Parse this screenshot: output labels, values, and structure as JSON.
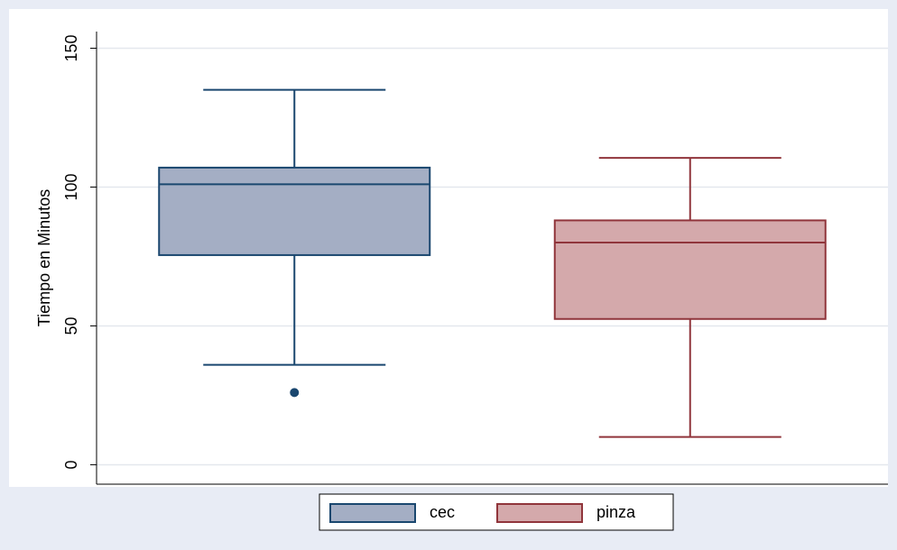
{
  "chart_data": {
    "type": "box",
    "y_label": "Tiempo en Minutos",
    "ylim": [
      -7,
      156
    ],
    "yticks": [
      0,
      50,
      100,
      150
    ],
    "grid": true,
    "legend": "bottom",
    "series": [
      {
        "name": "cec",
        "color": "#a4aec4",
        "edge": "#1a476f",
        "whisker_low": 36,
        "q1": 75.5,
        "median": 101,
        "q3": 107,
        "whisker_high": 135,
        "outliers": [
          26
        ]
      },
      {
        "name": "pinza",
        "color": "#d4a9ab",
        "edge": "#90353b",
        "whisker_low": 10,
        "q1": 52.5,
        "median": 80,
        "q3": 88,
        "whisker_high": 110.5,
        "outliers": []
      }
    ]
  }
}
